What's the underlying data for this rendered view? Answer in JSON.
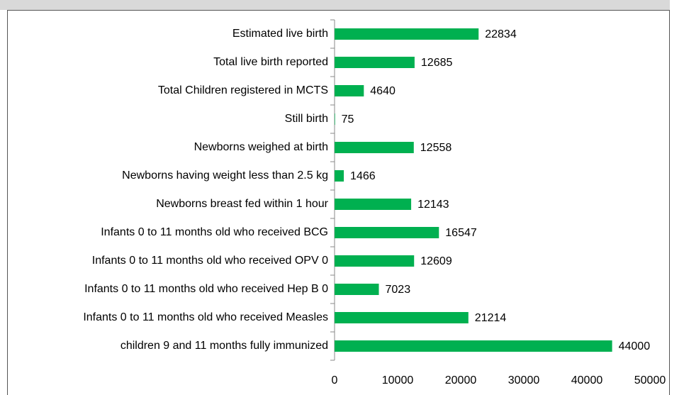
{
  "chart_data": {
    "type": "bar",
    "orientation": "horizontal",
    "categories": [
      "Estimated live birth",
      "Total live birth reported",
      "Total Children registered in MCTS",
      "Still birth",
      "Newborns weighed at birth",
      "Newborns having weight less than 2.5 kg",
      "Newborns breast fed within 1 hour",
      "Infants 0 to 11 months old who received BCG",
      "Infants 0 to 11 months old who received OPV 0",
      "Infants 0 to 11 months old who received Hep B 0",
      "Infants 0 to 11 months old who received Measles",
      "children 9 and 11 months fully immunized"
    ],
    "values": [
      22834,
      12685,
      4640,
      75,
      12558,
      1466,
      12143,
      16547,
      12609,
      7023,
      21214,
      44000
    ],
    "color": "#00b050",
    "xlim": [
      0,
      50000
    ],
    "xticks": [
      0,
      10000,
      20000,
      30000,
      40000,
      50000
    ],
    "grid": false,
    "data_labels": true
  }
}
